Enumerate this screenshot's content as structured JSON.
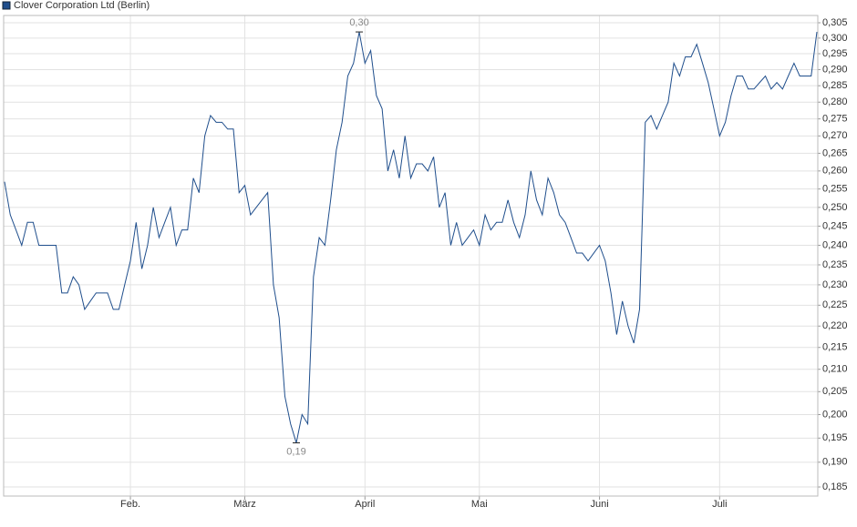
{
  "chart_data": {
    "type": "line",
    "log_scale": true,
    "grid": true,
    "legend": "top-left",
    "categories": [
      null,
      null,
      null,
      null,
      null,
      null,
      null,
      null,
      null,
      null,
      null,
      null,
      null,
      null,
      null,
      null,
      null,
      null,
      null,
      null,
      null,
      null,
      "Feb.",
      null,
      null,
      null,
      null,
      null,
      null,
      null,
      null,
      null,
      null,
      null,
      null,
      null,
      null,
      null,
      null,
      null,
      null,
      null,
      "März",
      null,
      null,
      null,
      null,
      null,
      null,
      null,
      null,
      null,
      null,
      null,
      null,
      null,
      null,
      null,
      null,
      null,
      null,
      null,
      null,
      "April",
      null,
      null,
      null,
      null,
      null,
      null,
      null,
      null,
      null,
      null,
      null,
      null,
      null,
      null,
      null,
      null,
      null,
      null,
      null,
      "Mai",
      null,
      null,
      null,
      null,
      null,
      null,
      null,
      null,
      null,
      null,
      null,
      null,
      null,
      null,
      null,
      null,
      null,
      null,
      null,
      null,
      "Juni",
      null,
      null,
      null,
      null,
      null,
      null,
      null,
      null,
      null,
      null,
      null,
      null,
      null,
      null,
      null,
      null,
      null,
      null,
      null,
      null,
      "Juli",
      null,
      null,
      null,
      null,
      null,
      null,
      null,
      null,
      null,
      null,
      null,
      null,
      null,
      null,
      null,
      null,
      null
    ],
    "series": [
      {
        "name": "Clover Corporation Ltd (Berlin)",
        "color": "#1f4e8c",
        "values": [
          0.257,
          0.248,
          0.244,
          0.24,
          0.246,
          0.246,
          0.24,
          0.24,
          0.24,
          0.24,
          0.228,
          0.228,
          0.232,
          0.23,
          0.224,
          0.226,
          0.228,
          0.228,
          0.228,
          0.224,
          0.224,
          0.23,
          0.236,
          0.246,
          0.234,
          0.24,
          0.25,
          0.242,
          0.246,
          0.25,
          0.24,
          0.244,
          0.244,
          0.258,
          0.254,
          0.27,
          0.276,
          0.274,
          0.274,
          0.272,
          0.272,
          0.254,
          0.256,
          0.248,
          0.25,
          0.252,
          0.254,
          0.23,
          0.222,
          0.204,
          0.198,
          0.194,
          0.2,
          0.198,
          0.232,
          0.242,
          0.24,
          0.252,
          0.266,
          0.274,
          0.288,
          0.292,
          0.302,
          0.292,
          0.296,
          0.282,
          0.278,
          0.26,
          0.266,
          0.258,
          0.27,
          0.258,
          0.262,
          0.262,
          0.26,
          0.264,
          0.25,
          0.254,
          0.24,
          0.246,
          0.24,
          0.242,
          0.244,
          0.24,
          0.248,
          0.244,
          0.246,
          0.246,
          0.252,
          0.246,
          0.242,
          0.248,
          0.26,
          0.252,
          0.248,
          0.258,
          0.254,
          0.248,
          0.246,
          0.242,
          0.238,
          0.238,
          0.236,
          0.238,
          0.24,
          0.236,
          0.228,
          0.218,
          0.226,
          0.22,
          0.216,
          0.224,
          0.274,
          0.276,
          0.272,
          0.276,
          0.28,
          0.292,
          0.288,
          0.294,
          0.294,
          0.298,
          0.292,
          0.286,
          0.278,
          0.27,
          0.274,
          0.282,
          0.288,
          0.288,
          0.284,
          0.284,
          0.286,
          0.288,
          0.284,
          0.286,
          0.284,
          0.288,
          0.292,
          0.288,
          0.288,
          0.288,
          0.302
        ],
        "value_labels": [
          null,
          null,
          null,
          null,
          null,
          null,
          null,
          null,
          null,
          null,
          null,
          null,
          null,
          null,
          null,
          null,
          null,
          null,
          null,
          null,
          null,
          null,
          null,
          null,
          null,
          null,
          null,
          null,
          null,
          null,
          null,
          null,
          null,
          null,
          null,
          null,
          null,
          null,
          null,
          null,
          null,
          null,
          null,
          null,
          null,
          null,
          null,
          null,
          null,
          null,
          null,
          "0,19",
          null,
          null,
          null,
          null,
          null,
          null,
          null,
          null,
          null,
          null,
          "0,30",
          null,
          null,
          null,
          null,
          null,
          null,
          null,
          null,
          null,
          null,
          null,
          null,
          null,
          null,
          null,
          null,
          null,
          null,
          null,
          null,
          null,
          null,
          null,
          null,
          null,
          null,
          null,
          null,
          null,
          null,
          null,
          null,
          null,
          null,
          null,
          null,
          null,
          null,
          null,
          null,
          null,
          null,
          null,
          null,
          null,
          null,
          null,
          null,
          null,
          null,
          null,
          null,
          null,
          null,
          null,
          null,
          null,
          null,
          null,
          null,
          null,
          null,
          null,
          null,
          null,
          null,
          null,
          null,
          null,
          null,
          null,
          null,
          null,
          null,
          null,
          null,
          null,
          null,
          null,
          null
        ]
      }
    ],
    "ylim": [
      0.1832,
      0.3074
    ],
    "yticks": [
      {
        "value": 0.305,
        "label": "0,305"
      },
      {
        "value": 0.3,
        "label": "0,300"
      },
      {
        "value": 0.295,
        "label": "0,295"
      },
      {
        "value": 0.29,
        "label": "0,290"
      },
      {
        "value": 0.285,
        "label": "0,285"
      },
      {
        "value": 0.28,
        "label": "0,280"
      },
      {
        "value": 0.275,
        "label": "0,275"
      },
      {
        "value": 0.27,
        "label": "0,270"
      },
      {
        "value": 0.265,
        "label": "0,265"
      },
      {
        "value": 0.26,
        "label": "0,260"
      },
      {
        "value": 0.255,
        "label": "0,255"
      },
      {
        "value": 0.25,
        "label": "0,250"
      },
      {
        "value": 0.245,
        "label": "0,245"
      },
      {
        "value": 0.24,
        "label": "0,240"
      },
      {
        "value": 0.235,
        "label": "0,235"
      },
      {
        "value": 0.23,
        "label": "0,230"
      },
      {
        "value": 0.225,
        "label": "0,225"
      },
      {
        "value": 0.22,
        "label": "0,220"
      },
      {
        "value": 0.215,
        "label": "0,215"
      },
      {
        "value": 0.21,
        "label": "0,210"
      },
      {
        "value": 0.205,
        "label": "0,205"
      },
      {
        "value": 0.2,
        "label": "0,200"
      },
      {
        "value": 0.195,
        "label": "0,195"
      },
      {
        "value": 0.19,
        "label": "0,190"
      },
      {
        "value": 0.185,
        "label": "0,185"
      }
    ]
  }
}
